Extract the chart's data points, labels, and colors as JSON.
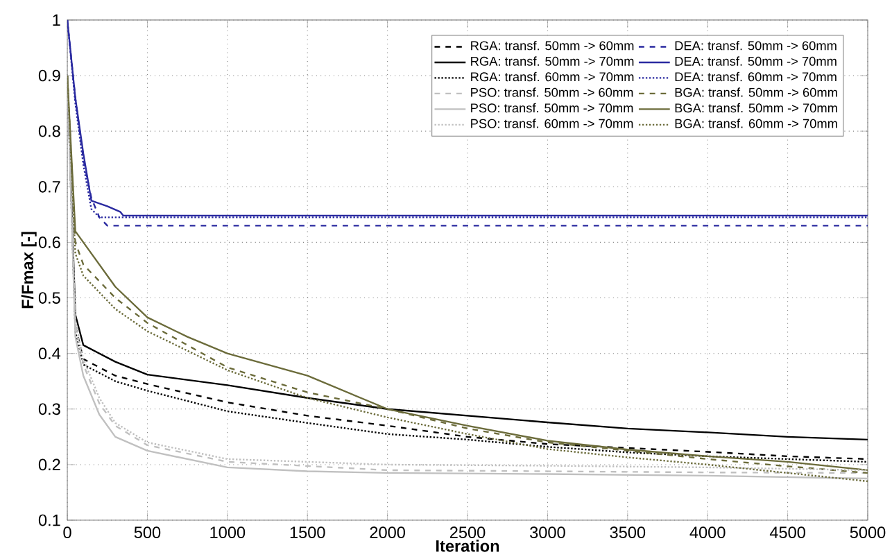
{
  "chart_data": {
    "type": "line",
    "xlabel": "Iteration",
    "ylabel": "F/Fmax [-]",
    "xlim": [
      0,
      5000
    ],
    "ylim": [
      0.1,
      1
    ],
    "xticks": [
      0,
      500,
      1000,
      1500,
      2000,
      2500,
      3000,
      3500,
      4000,
      4500,
      5000
    ],
    "yticks": [
      0.1,
      0.2,
      0.3,
      0.4,
      0.5,
      0.6,
      0.7,
      0.8,
      0.9,
      1
    ],
    "grid": true,
    "legend": "top right",
    "series": [
      {
        "name": "RGA: transf. 50mm  -> 60mm",
        "color": "#000000",
        "line_style": "dashed",
        "x": [
          0,
          50,
          100,
          300,
          500,
          1000,
          1500,
          2000,
          2500,
          3000,
          3500,
          4000,
          4500,
          5000
        ],
        "values": [
          0.9,
          0.45,
          0.39,
          0.36,
          0.345,
          0.312,
          0.288,
          0.27,
          0.25,
          0.237,
          0.23,
          0.223,
          0.215,
          0.21
        ]
      },
      {
        "name": "RGA: transf. 50mm  -> 70mm",
        "color": "#000000",
        "line_style": "solid",
        "x": [
          0,
          50,
          100,
          300,
          500,
          1000,
          1500,
          2000,
          2500,
          3000,
          3500,
          4000,
          4500,
          5000
        ],
        "values": [
          0.9,
          0.47,
          0.415,
          0.385,
          0.362,
          0.343,
          0.32,
          0.3,
          0.288,
          0.276,
          0.265,
          0.258,
          0.25,
          0.245
        ]
      },
      {
        "name": "RGA: transf. 60mm  -> 70mm",
        "color": "#000000",
        "line_style": "dotted",
        "x": [
          0,
          50,
          100,
          300,
          500,
          1000,
          1500,
          2000,
          2500,
          3000,
          3500,
          4000,
          4500,
          5000
        ],
        "values": [
          0.9,
          0.44,
          0.38,
          0.35,
          0.333,
          0.296,
          0.275,
          0.255,
          0.245,
          0.232,
          0.222,
          0.215,
          0.21,
          0.205
        ]
      },
      {
        "name": "PSO: transf. 50mm  -> 60mm",
        "color": "#c0c0c0",
        "line_style": "dashed",
        "x": [
          0,
          50,
          100,
          200,
          300,
          500,
          1000,
          2000,
          3000,
          4000,
          5000
        ],
        "values": [
          0.9,
          0.45,
          0.38,
          0.31,
          0.27,
          0.235,
          0.205,
          0.19,
          0.188,
          0.186,
          0.185
        ]
      },
      {
        "name": "PSO: transf. 50mm  -> 70mm",
        "color": "#c0c0c0",
        "line_style": "solid",
        "x": [
          0,
          50,
          100,
          200,
          300,
          500,
          1000,
          1500,
          2000,
          3000,
          4000,
          5000
        ],
        "values": [
          0.9,
          0.43,
          0.36,
          0.29,
          0.25,
          0.225,
          0.195,
          0.188,
          0.185,
          0.183,
          0.18,
          0.175
        ]
      },
      {
        "name": "PSO: transf. 60mm  -> 70mm",
        "color": "#c0c0c0",
        "line_style": "dotted",
        "x": [
          0,
          50,
          100,
          200,
          300,
          500,
          1000,
          2000,
          3000,
          4000,
          5000
        ],
        "values": [
          0.9,
          0.46,
          0.39,
          0.32,
          0.275,
          0.24,
          0.21,
          0.2,
          0.198,
          0.195,
          0.19
        ]
      },
      {
        "name": "DEA: transf. 50mm  -> 60mm",
        "color": "#2a2aa0",
        "line_style": "dashed",
        "x": [
          0,
          50,
          100,
          150,
          200,
          250,
          5000
        ],
        "values": [
          1,
          0.86,
          0.75,
          0.68,
          0.645,
          0.63,
          0.63
        ]
      },
      {
        "name": "DEA: transf. 50mm  -> 70mm",
        "color": "#2a2aa0",
        "line_style": "solid",
        "x": [
          0,
          50,
          100,
          150,
          250,
          330,
          350,
          5000
        ],
        "values": [
          1,
          0.86,
          0.76,
          0.675,
          0.665,
          0.655,
          0.648,
          0.648
        ]
      },
      {
        "name": "DEA: transf. 60mm  -> 70mm",
        "color": "#2a2aa0",
        "line_style": "dotted",
        "x": [
          0,
          50,
          100,
          150,
          200,
          5000
        ],
        "values": [
          1,
          0.85,
          0.74,
          0.66,
          0.645,
          0.645
        ]
      },
      {
        "name": "BGA: transf. 50mm  -> 60mm",
        "color": "#6b6b3a",
        "line_style": "dashed",
        "x": [
          0,
          50,
          100,
          300,
          500,
          1000,
          1500,
          2000,
          2500,
          3000,
          3500,
          4000,
          4500,
          5000
        ],
        "values": [
          0.9,
          0.6,
          0.56,
          0.5,
          0.455,
          0.375,
          0.33,
          0.3,
          0.265,
          0.24,
          0.225,
          0.21,
          0.197,
          0.185
        ]
      },
      {
        "name": "BGA: transf. 50mm  -> 70mm",
        "color": "#6b6b3a",
        "line_style": "solid",
        "x": [
          0,
          50,
          100,
          300,
          500,
          750,
          1000,
          1500,
          2000,
          2500,
          3000,
          3500,
          4000,
          4500,
          5000
        ],
        "values": [
          0.9,
          0.62,
          0.6,
          0.52,
          0.465,
          0.43,
          0.4,
          0.36,
          0.3,
          0.27,
          0.243,
          0.227,
          0.215,
          0.205,
          0.19
        ]
      },
      {
        "name": "BGA: transf. 60mm  -> 70mm",
        "color": "#6b6b3a",
        "line_style": "dotted",
        "x": [
          0,
          50,
          100,
          300,
          500,
          1000,
          1500,
          2000,
          2500,
          3000,
          3500,
          4000,
          4500,
          5000
        ],
        "values": [
          0.9,
          0.58,
          0.54,
          0.48,
          0.44,
          0.37,
          0.32,
          0.285,
          0.255,
          0.228,
          0.213,
          0.2,
          0.185,
          0.17
        ]
      }
    ]
  }
}
